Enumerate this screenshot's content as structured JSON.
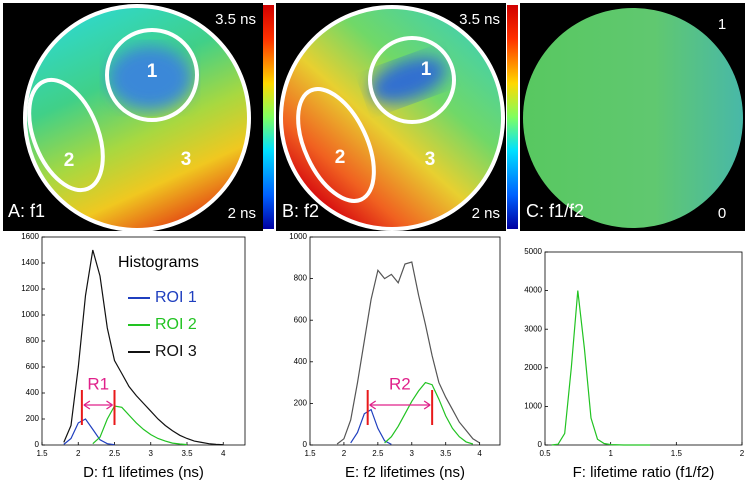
{
  "panels": [
    {
      "label": "A: f1",
      "scale_max": "3.5 ns",
      "scale_min": "2 ns",
      "rois": [
        "1",
        "2",
        "3"
      ]
    },
    {
      "label": "B: f2",
      "scale_max": "3.5 ns",
      "scale_min": "2 ns",
      "rois": [
        "1",
        "2",
        "3"
      ]
    },
    {
      "label": "C: f1/f2",
      "scale_max": "1",
      "scale_min": "0"
    }
  ],
  "chart_data": [
    {
      "type": "line",
      "xlabel": "D: f1 lifetimes (ns)",
      "legend_title": "Histograms",
      "xlim": [
        1.5,
        4.3
      ],
      "xticks": [
        1.5,
        2,
        2.5,
        3,
        3.5,
        4
      ],
      "ylim": [
        0,
        1600
      ],
      "yticks": [
        0,
        200,
        400,
        600,
        800,
        1000,
        1200,
        1400,
        1600
      ],
      "series": [
        {
          "name": "ROI 1",
          "color": "#1f3fbf",
          "x": [
            1.8,
            1.9,
            2.0,
            2.1,
            2.2,
            2.3,
            2.4,
            2.5
          ],
          "values": [
            5,
            50,
            170,
            200,
            120,
            40,
            10,
            2
          ]
        },
        {
          "name": "ROI 2",
          "color": "#22c322",
          "x": [
            2.2,
            2.3,
            2.4,
            2.5,
            2.6,
            2.7,
            2.8,
            2.9,
            3.0,
            3.1,
            3.2,
            3.3,
            3.4,
            3.5
          ],
          "values": [
            10,
            60,
            200,
            300,
            290,
            230,
            170,
            120,
            80,
            50,
            30,
            15,
            8,
            3
          ]
        },
        {
          "name": "ROI 3",
          "color": "#111111",
          "x": [
            1.8,
            1.9,
            2.0,
            2.1,
            2.2,
            2.3,
            2.4,
            2.5,
            2.6,
            2.7,
            2.8,
            2.9,
            3.0,
            3.1,
            3.2,
            3.3,
            3.4,
            3.5,
            3.6,
            3.7,
            3.8,
            3.9,
            4.0
          ],
          "values": [
            20,
            150,
            600,
            1150,
            1500,
            1300,
            900,
            650,
            550,
            450,
            380,
            320,
            260,
            200,
            150,
            110,
            75,
            50,
            30,
            20,
            10,
            5,
            2
          ]
        }
      ],
      "annotation": {
        "text": "R1",
        "color": "#e0208a"
      },
      "markers": {
        "x": [
          2.05,
          2.5
        ],
        "color": "#e8191a"
      }
    },
    {
      "type": "line",
      "xlabel": "E: f2 lifetimes (ns)",
      "xlim": [
        1.5,
        4.3
      ],
      "xticks": [
        1.5,
        2,
        2.5,
        3,
        3.5,
        4
      ],
      "ylim": [
        0,
        1000
      ],
      "yticks": [
        0,
        200,
        400,
        600,
        800,
        1000
      ],
      "series": [
        {
          "color": "#1f3fbf",
          "x": [
            2.1,
            2.2,
            2.3,
            2.4,
            2.5,
            2.6,
            2.7
          ],
          "values": [
            10,
            60,
            150,
            170,
            80,
            20,
            3
          ]
        },
        {
          "color": "#22c322",
          "x": [
            2.6,
            2.7,
            2.8,
            2.9,
            3.0,
            3.1,
            3.2,
            3.3,
            3.4,
            3.5,
            3.6,
            3.7,
            3.8,
            3.9
          ],
          "values": [
            10,
            40,
            90,
            150,
            210,
            260,
            300,
            290,
            220,
            140,
            80,
            40,
            15,
            5
          ]
        },
        {
          "color": "#555555",
          "x": [
            1.9,
            2.0,
            2.1,
            2.2,
            2.3,
            2.4,
            2.5,
            2.6,
            2.7,
            2.8,
            2.9,
            3.0,
            3.1,
            3.2,
            3.3,
            3.4,
            3.5,
            3.6,
            3.7,
            3.8,
            3.9,
            4.0
          ],
          "values": [
            5,
            30,
            120,
            300,
            500,
            700,
            840,
            800,
            820,
            780,
            870,
            880,
            720,
            580,
            430,
            300,
            230,
            170,
            110,
            70,
            30,
            10
          ]
        }
      ],
      "annotation": {
        "text": "R2",
        "color": "#e0208a"
      },
      "markers": {
        "x": [
          2.35,
          3.3
        ],
        "color": "#e8191a"
      }
    },
    {
      "type": "line",
      "xlabel": "F: lifetime ratio (f1/f2)",
      "xlim": [
        0.5,
        2
      ],
      "xticks": [
        0.5,
        1,
        1.5,
        2
      ],
      "ylim": [
        0,
        5000
      ],
      "yticks": [
        0,
        1000,
        2000,
        3000,
        4000,
        5000
      ],
      "series": [
        {
          "color": "#22c322",
          "x": [
            0.55,
            0.6,
            0.65,
            0.7,
            0.75,
            0.8,
            0.85,
            0.9,
            0.95,
            1.0,
            1.1,
            1.2,
            1.3
          ],
          "values": [
            0,
            20,
            300,
            2000,
            4000,
            2500,
            700,
            150,
            40,
            10,
            0,
            0,
            0
          ]
        }
      ]
    }
  ]
}
